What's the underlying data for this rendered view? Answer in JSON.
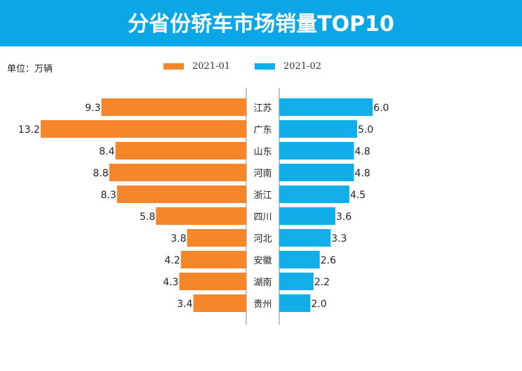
{
  "chart_data": {
    "type": "bar",
    "title": "分省份轿车市场销量TOP10",
    "unit_label": "单位：万辆",
    "categories": [
      "江苏",
      "广东",
      "山东",
      "河南",
      "浙江",
      "四川",
      "河北",
      "安徽",
      "湖南",
      "贵州"
    ],
    "series": [
      {
        "name": "2021-01",
        "color": "#f6862a",
        "values": [
          9.3,
          13.2,
          8.4,
          8.8,
          8.3,
          5.8,
          3.8,
          4.2,
          4.3,
          3.4
        ]
      },
      {
        "name": "2021-02",
        "color": "#12aeea",
        "values": [
          6.0,
          5.0,
          4.8,
          4.8,
          4.5,
          3.6,
          3.3,
          2.6,
          2.2,
          2.0
        ]
      }
    ]
  }
}
